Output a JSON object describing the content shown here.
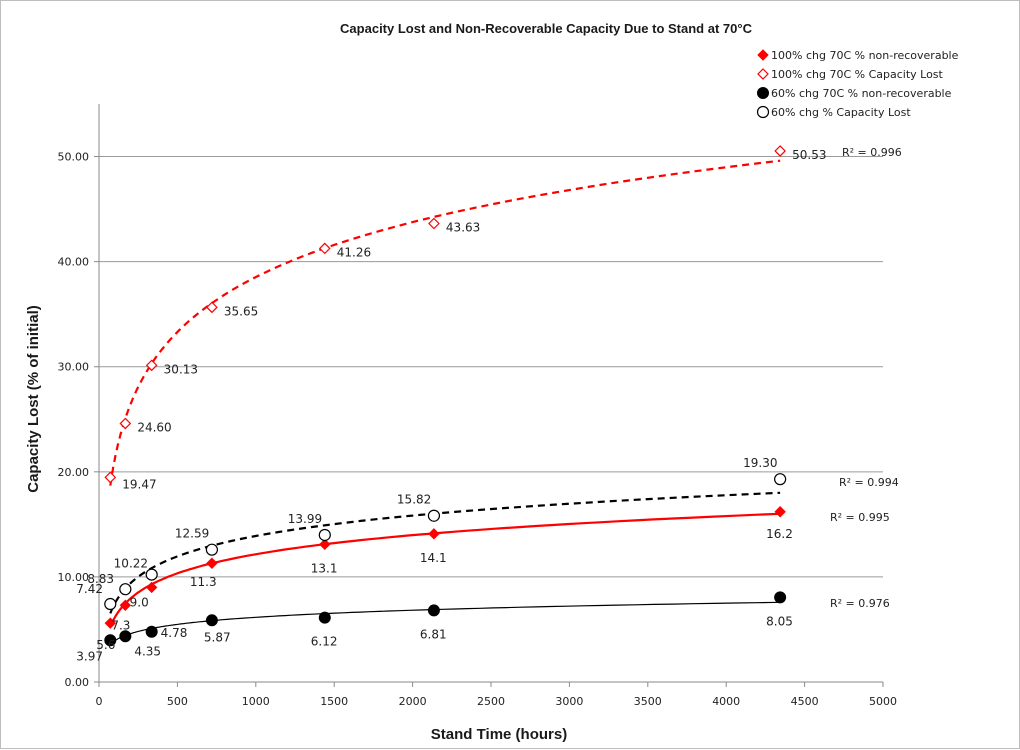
{
  "chart_data": {
    "type": "scatter",
    "title": "Capacity Lost  and Non-Recoverable Capacity Due to Stand at 70°C",
    "xlabel": "Stand Time (hours)",
    "ylabel": "Capacity Lost (% of initial)",
    "xlim": [
      0,
      5000
    ],
    "ylim": [
      0,
      55
    ],
    "xticks": [
      "0",
      "500",
      "1000",
      "1500",
      "2000",
      "2500",
      "3000",
      "3500",
      "4000",
      "4500",
      "5000"
    ],
    "yticks": [
      "0.00",
      "10.00",
      "20.00",
      "30.00",
      "40.00",
      "50.00"
    ],
    "grid": "horizontal",
    "legend_position": "top-right",
    "series": [
      {
        "name": "100% chg 70C % non-recoverable",
        "marker": "filled-diamond",
        "color": "#ff0000",
        "trendline": "solid",
        "r_squared": "R² = 0.995",
        "x": [
          72,
          168,
          336,
          720,
          1440,
          2136,
          4344
        ],
        "y": [
          5.6,
          7.3,
          9.0,
          11.3,
          13.1,
          14.1,
          16.2
        ],
        "labels": [
          "5.6",
          "7.3",
          "9.0",
          "11.3",
          "13.1",
          "14.1",
          "16.2"
        ]
      },
      {
        "name": "100% chg 70C % Capacity Lost",
        "marker": "open-diamond",
        "color": "#ff0000",
        "trendline": "dashed",
        "r_squared": "R² = 0.996",
        "x": [
          72,
          168,
          336,
          720,
          1440,
          2136,
          4344
        ],
        "y": [
          19.47,
          24.6,
          30.13,
          35.65,
          41.26,
          43.63,
          50.53
        ],
        "labels": [
          "19.47",
          "24.60",
          "30.13",
          "35.65",
          "41.26",
          "43.63",
          "50.53"
        ]
      },
      {
        "name": "60% chg 70C % non-recoverable",
        "marker": "filled-circle",
        "color": "#000000",
        "trendline": "solid",
        "r_squared": "R² = 0.976",
        "x": [
          72,
          168,
          336,
          720,
          1440,
          2136,
          4344
        ],
        "y": [
          3.97,
          4.35,
          4.78,
          5.87,
          6.12,
          6.81,
          8.05
        ],
        "labels": [
          "3.97",
          "4.35",
          "4.78",
          "5.87",
          "6.12",
          "6.81",
          "8.05"
        ]
      },
      {
        "name": "60% chg % Capacity Lost",
        "marker": "open-circle",
        "color": "#000000",
        "trendline": "dashed",
        "r_squared": "R² = 0.994",
        "x": [
          72,
          168,
          336,
          720,
          1440,
          2136,
          4344
        ],
        "y": [
          7.42,
          8.83,
          10.22,
          12.59,
          13.99,
          15.82,
          19.3
        ],
        "labels": [
          "7.42",
          "8.83",
          "10.22",
          "12.59",
          "13.99",
          "15.82",
          "19.30"
        ]
      }
    ]
  }
}
